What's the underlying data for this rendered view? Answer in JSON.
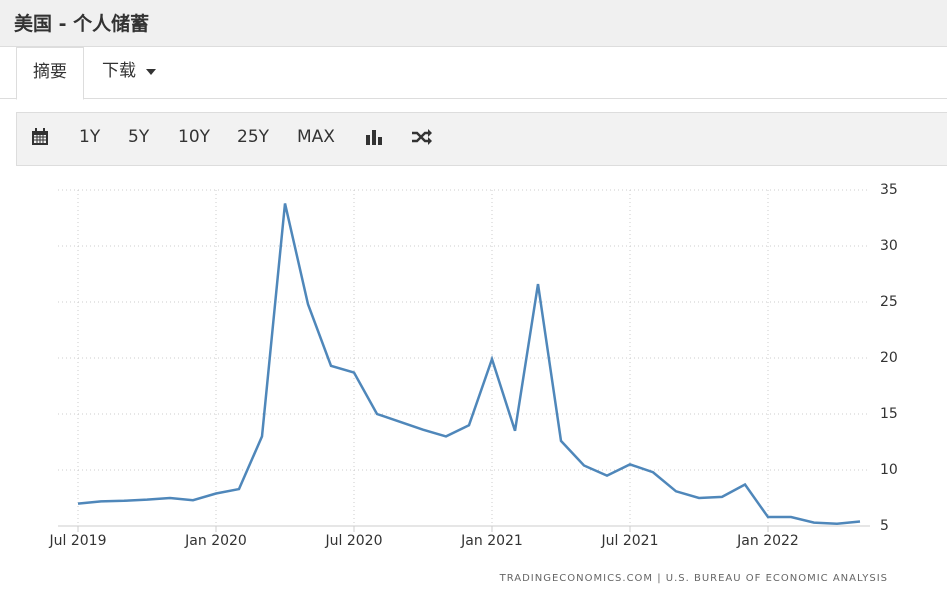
{
  "header": {
    "title": "美国 - 个人储蓄"
  },
  "tabs": [
    "摘要",
    "下载"
  ],
  "toolbar": [
    "1Y",
    "5Y",
    "10Y",
    "25Y",
    "MAX"
  ],
  "chart_data": {
    "type": "line",
    "source": "TRADINGECONOMICS.COM | U.S. BUREAU OF ECONOMIC ANALYSIS",
    "x": [
      "2019-07",
      "2019-08",
      "2019-09",
      "2019-10",
      "2019-11",
      "2019-12",
      "2020-01",
      "2020-02",
      "2020-03",
      "2020-04",
      "2020-05",
      "2020-06",
      "2020-07",
      "2020-08",
      "2020-09",
      "2020-10",
      "2020-11",
      "2020-12",
      "2021-01",
      "2021-02",
      "2021-03",
      "2021-04",
      "2021-05",
      "2021-06",
      "2021-07",
      "2021-08",
      "2021-09",
      "2021-10",
      "2021-11",
      "2021-12",
      "2022-01",
      "2022-02",
      "2022-03",
      "2022-04",
      "2022-05"
    ],
    "values": [
      7.0,
      7.2,
      7.25,
      7.35,
      7.5,
      7.3,
      7.9,
      8.3,
      13.0,
      33.8,
      24.8,
      19.3,
      18.7,
      15.0,
      14.3,
      13.6,
      13.0,
      14.0,
      19.9,
      13.5,
      26.6,
      12.6,
      10.4,
      9.5,
      10.5,
      9.8,
      8.1,
      7.5,
      7.6,
      8.7,
      5.8,
      5.8,
      5.3,
      5.2,
      5.4
    ],
    "color": "#4f87ba",
    "xticks": [
      {
        "value": "2019-07",
        "label": "Jul 2019"
      },
      {
        "value": "2020-01",
        "label": "Jan 2020"
      },
      {
        "value": "2020-07",
        "label": "Jul 2020"
      },
      {
        "value": "2021-01",
        "label": "Jan 2021"
      },
      {
        "value": "2021-07",
        "label": "Jul 2021"
      },
      {
        "value": "2022-01",
        "label": "Jan 2022"
      }
    ],
    "ylim": [
      5,
      35
    ],
    "yticks": [
      5,
      10,
      15,
      20,
      25,
      30,
      35
    ],
    "grid": true
  }
}
